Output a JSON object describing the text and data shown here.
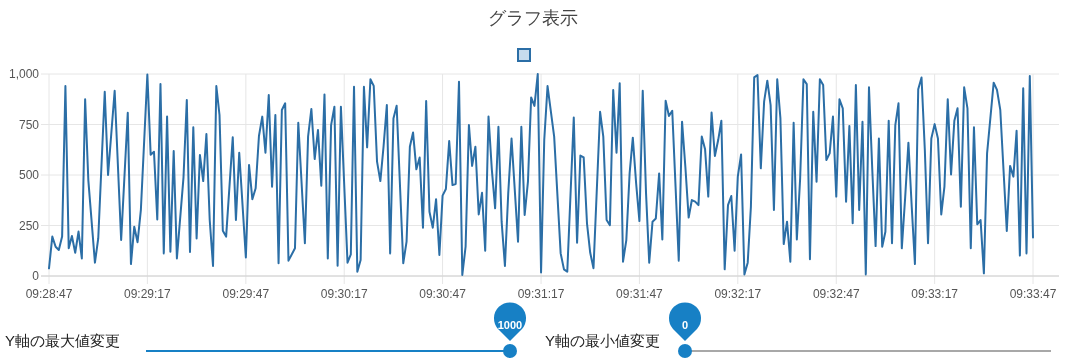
{
  "chart_data": {
    "type": "line",
    "title": "グラフ表示",
    "x": [
      9.47972,
      9.48,
      9.48028,
      9.48055,
      9.48083,
      9.48111,
      9.48139,
      9.48166,
      9.48194,
      9.48222,
      9.4825,
      9.48278,
      9.48305,
      9.48361,
      9.48389,
      9.48444,
      9.48472,
      9.48528,
      9.48583,
      9.48639,
      9.48666,
      9.48694,
      9.48722,
      9.4875,
      9.48805,
      9.48833,
      9.48861,
      9.48889,
      9.48916,
      9.48944,
      9.48972,
      9.49,
      9.49028,
      9.49055,
      9.49111,
      9.49139,
      9.49166,
      9.49194,
      9.49222,
      9.4925,
      9.49278,
      9.49305,
      9.49333,
      9.49361,
      9.49389,
      9.49416,
      9.49444,
      9.49472,
      9.49528,
      9.49555,
      9.49583,
      9.49639,
      9.49666,
      9.49694,
      9.49722,
      9.4975,
      9.49778,
      9.49805,
      9.49833,
      9.49861,
      9.49889,
      9.49916,
      9.49944,
      9.49972,
      9.5,
      9.50055,
      9.50083,
      9.50139,
      9.50166,
      9.50194,
      9.50222,
      9.5025,
      9.50278,
      9.50305,
      9.50333,
      9.50361,
      9.50389,
      9.50416,
      9.50444,
      9.505,
      9.50528,
      9.50555,
      9.50583,
      9.50611,
      9.50639,
      9.50666,
      9.50694,
      9.50722,
      9.5075,
      9.50778,
      9.50805,
      9.50833,
      9.50861,
      9.50889,
      9.50916,
      9.50972,
      9.51,
      9.51028,
      9.51055,
      9.51083,
      9.51111,
      9.51139,
      9.51166,
      9.51194,
      9.51222,
      9.5125,
      9.51278,
      9.51305,
      9.51333,
      9.51361,
      9.51389,
      9.51416,
      9.51444,
      9.51472,
      9.515,
      9.51528,
      9.51555,
      9.51583,
      9.51611,
      9.51639,
      9.51666,
      9.51694,
      9.51722,
      9.5175,
      9.51778,
      9.51805,
      9.51833,
      9.51861,
      9.51889,
      9.51944,
      9.51972,
      9.52,
      9.52028,
      9.52055,
      9.52083,
      9.52111,
      9.52139,
      9.52166,
      9.52194,
      9.5225,
      9.52305,
      9.52333,
      9.52361,
      9.52416,
      9.52444,
      9.52472,
      9.525,
      9.52528,
      9.52555,
      9.52583,
      9.52639,
      9.52666,
      9.52694,
      9.52722,
      9.5275,
      9.52778,
      9.52805,
      9.52833,
      9.52861,
      9.52889,
      9.52916,
      9.52944,
      9.52972,
      9.53,
      9.53028,
      9.53055,
      9.53083,
      9.53111,
      9.53139,
      9.53166,
      9.53194,
      9.53222,
      9.5325,
      9.53278,
      9.53305,
      9.53333,
      9.53361,
      9.53389,
      9.53416,
      9.53444,
      9.53472,
      9.535,
      9.53528,
      9.53555,
      9.53583,
      9.53611,
      9.53639,
      9.53666,
      9.53694,
      9.53722,
      9.5375,
      9.53778,
      9.53805,
      9.53833,
      9.53861,
      9.53889,
      9.53916,
      9.53944,
      9.53972,
      9.54,
      9.54028,
      9.54055,
      9.54083,
      9.54111,
      9.54139,
      9.54166,
      9.54194,
      9.54222,
      9.5425,
      9.54278,
      9.54305,
      9.54333,
      9.54361,
      9.54389,
      9.54416,
      9.54444,
      9.54472,
      9.545,
      9.54528,
      9.54555,
      9.54583,
      9.54611,
      9.54639,
      9.54666,
      9.54694,
      9.54722,
      9.5475,
      9.54778,
      9.54805,
      9.54833,
      9.54861,
      9.54889,
      9.54916,
      9.54944,
      9.54972,
      9.55,
      9.55028,
      9.55055,
      9.55083,
      9.55111,
      9.55139,
      9.55166,
      9.55194,
      9.55222,
      9.5525,
      9.55278,
      9.55305,
      9.55333,
      9.55361,
      9.55389,
      9.55416,
      9.55444,
      9.55472,
      9.555,
      9.55528,
      9.55555,
      9.55583,
      9.55611,
      9.55639,
      9.55666,
      9.55694,
      9.55722,
      9.5575,
      9.55778,
      9.55805,
      9.55833,
      9.55861,
      9.55889,
      9.55916,
      9.55972,
      9.56,
      9.56028,
      9.56083,
      9.56111,
      9.56139,
      9.56166,
      9.56194,
      9.56222,
      9.5625,
      9.56278,
      9.56305
    ],
    "series": [
      {
        "color": "#2b6ea6",
        "values": [
          38,
          195,
          145,
          129,
          195,
          940,
          137,
          198,
          115,
          220,
          87,
          875,
          475,
          66,
          186,
          912,
          500,
          917,
          178,
          808,
          59,
          244,
          167,
          327,
          997,
          600,
          615,
          280,
          950,
          112,
          789,
          120,
          619,
          87,
          488,
          871,
          119,
          736,
          186,
          599,
          470,
          703,
          277,
          50,
          940,
          797,
          224,
          195,
          687,
          277,
          610,
          92,
          550,
          380,
          434,
          693,
          789,
          610,
          896,
          442,
          797,
          63,
          822,
          855,
          76,
          137,
          759,
          162,
          690,
          827,
          579,
          723,
          447,
          899,
          87,
          747,
          838,
          51,
          838,
          66,
          107,
          937,
          21,
          79,
          937,
          637,
          974,
          941,
          566,
          470,
          640,
          846,
          112,
          780,
          843,
          63,
          170,
          640,
          710,
          528,
          587,
          239,
          866,
          318,
          239,
          380,
          104,
          398,
          431,
          668,
          450,
          455,
          962,
          5,
          145,
          747,
          545,
          640,
          305,
          412,
          125,
          789,
          528,
          335,
          739,
          269,
          50,
          409,
          681,
          170,
          739,
          302,
          467,
          884,
          842,
          1000,
          17,
          673,
          940,
          690,
          112,
          33,
          21,
          785,
          165,
          596,
          587,
          261,
          116,
          38,
          813,
          690,
          277,
          252,
          921,
          610,
          954,
          71,
          178,
          508,
          685,
          459,
          272,
          917,
          409,
          66,
          269,
          285,
          508,
          181,
          868,
          792,
          818,
          442,
          76,
          764,
          541,
          289,
          376,
          368,
          351,
          690,
          627,
          393,
          809,
          594,
          673,
          769,
          33,
          351,
          396,
          125,
          492,
          602,
          8,
          66,
          343,
          983,
          995,
          533,
          863,
          967,
          846,
          327,
          974,
          780,
          158,
          269,
          71,
          759,
          181,
          483,
          974,
          950,
          83,
          813,
          467,
          974,
          945,
          574,
          607,
          789,
          393,
          875,
          830,
          368,
          743,
          261,
          945,
          327,
          764,
          8,
          934,
          525,
          148,
          681,
          145,
          219,
          769,
          162,
          747,
          855,
          137,
          384,
          660,
          343,
          59,
          924,
          983,
          624,
          162,
          681,
          752,
          681,
          305,
          442,
          875,
          503,
          769,
          830,
          343,
          934,
          830,
          137,
          736,
          256,
          277,
          13,
          607,
          957,
          921,
          822,
          223,
          545,
          492,
          719,
          101,
          929,
          112,
          990,
          191
        ]
      }
    ],
    "xlim": [
      9.47972,
      9.56305
    ],
    "xticks": [
      {
        "value": 9.47972,
        "label": "09:28:47"
      },
      {
        "value": 9.48805,
        "label": "09:29:17"
      },
      {
        "value": 9.49639,
        "label": "09:29:47"
      },
      {
        "value": 9.50472,
        "label": "09:30:17"
      },
      {
        "value": 9.51305,
        "label": "09:30:47"
      },
      {
        "value": 9.52139,
        "label": "09:31:17"
      },
      {
        "value": 9.52972,
        "label": "09:31:47"
      },
      {
        "value": 9.53805,
        "label": "09:32:17"
      },
      {
        "value": 9.54639,
        "label": "09:32:47"
      },
      {
        "value": 9.55472,
        "label": "09:33:17"
      },
      {
        "value": 9.56305,
        "label": "09:33:47"
      }
    ],
    "ylim": [
      0,
      1000
    ],
    "yticks": [
      0,
      250,
      500,
      750,
      {
        "value": 1000,
        "label": "1,000"
      }
    ],
    "grid": true,
    "marker": "none",
    "line_style": "solid",
    "annotations": [
      "Y軸の最大値変更",
      "1000",
      "Y軸の最小値変更",
      "0"
    ]
  }
}
